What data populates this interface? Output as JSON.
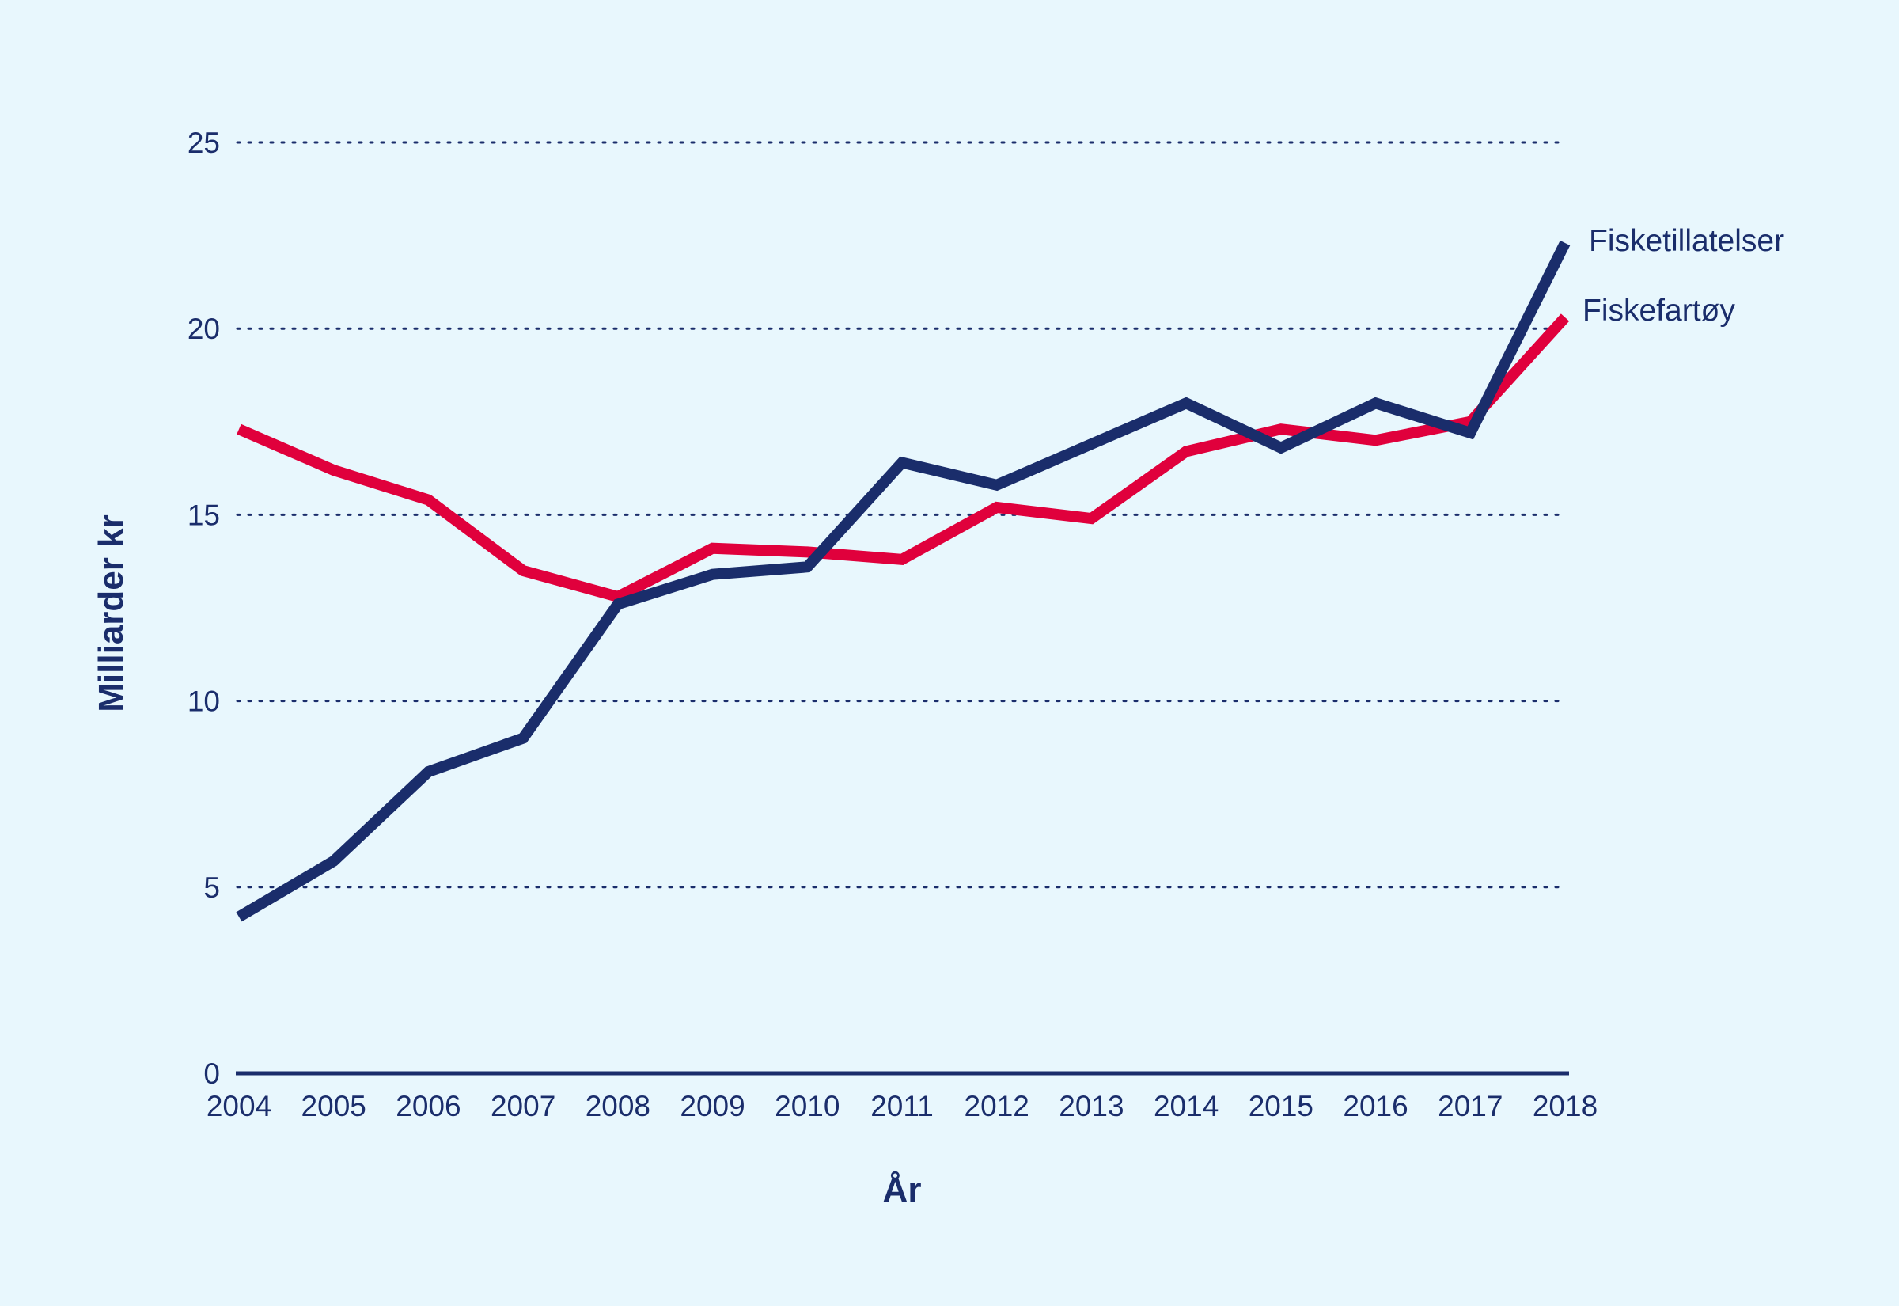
{
  "chart_data": {
    "type": "line",
    "title": "",
    "xlabel": "År",
    "ylabel": "Milliarder kr",
    "x": [
      "2004",
      "2005",
      "2006",
      "2007",
      "2008",
      "2009",
      "2010",
      "2011",
      "2012",
      "2013",
      "2014",
      "2015",
      "2016",
      "2017",
      "2018"
    ],
    "yticks": [
      "0",
      "5",
      "10",
      "15",
      "20",
      "25"
    ],
    "ylim": [
      0,
      25
    ],
    "grid": true,
    "legend": "direct labels at line ends",
    "series": [
      {
        "name": "Fisketillatelser",
        "color": "#1a2d6b",
        "values": [
          4.2,
          5.7,
          8.1,
          9.0,
          12.6,
          13.4,
          13.6,
          16.4,
          15.8,
          16.9,
          18.0,
          16.8,
          18.0,
          17.2,
          22.3
        ]
      },
      {
        "name": "Fiskefartøy",
        "color": "#e0003c",
        "values": [
          17.3,
          16.2,
          15.4,
          13.5,
          12.8,
          14.1,
          14.0,
          13.8,
          15.2,
          14.9,
          16.7,
          17.3,
          17.0,
          17.5,
          20.3
        ]
      }
    ]
  }
}
